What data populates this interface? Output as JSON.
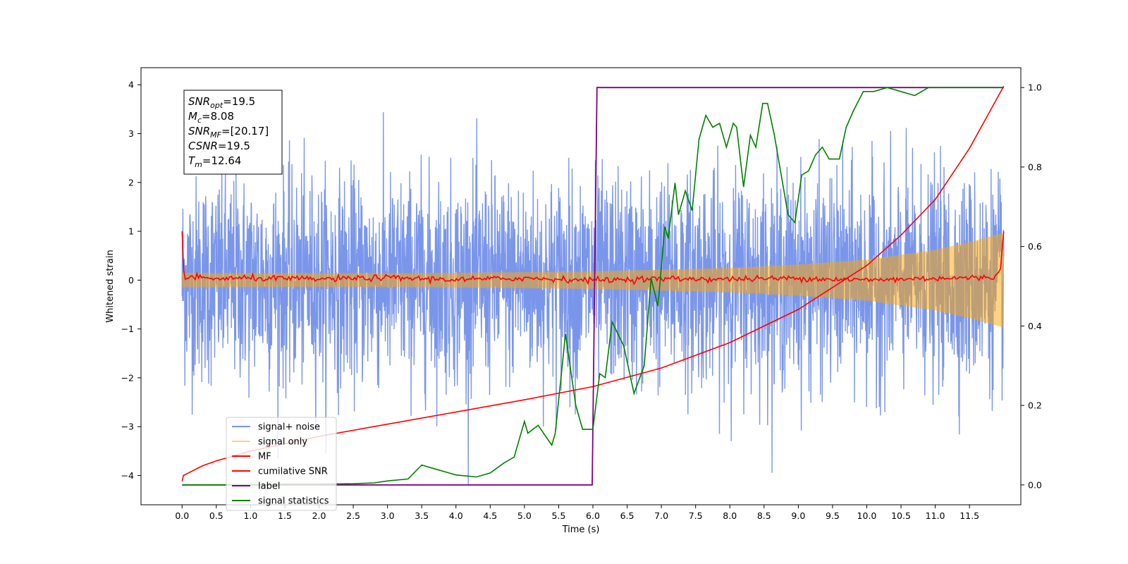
{
  "chart_data": {
    "type": "line",
    "title": "",
    "xlabel": "Time (s)",
    "ylabel": "Whitened strain",
    "xlim": [
      -0.6,
      12.25
    ],
    "ylim": [
      -4.6,
      4.35
    ],
    "ylim_right": [
      -0.05,
      1.05
    ],
    "x_ticks": [
      0.0,
      0.5,
      1.0,
      1.5,
      2.0,
      2.5,
      3.0,
      3.5,
      4.0,
      4.5,
      5.0,
      5.5,
      6.0,
      6.5,
      7.0,
      7.5,
      8.0,
      8.5,
      9.0,
      9.5,
      10.0,
      10.5,
      11.0,
      11.5
    ],
    "x_tick_labels": [
      "0.0",
      "0.5",
      "1.0",
      "1.5",
      "2.0",
      "2.5",
      "3.0",
      "3.5",
      "4.0",
      "4.5",
      "5.0",
      "5.5",
      "6.0",
      "6.5",
      "7.0",
      "7.5",
      "8.0",
      "8.5",
      "9.0",
      "9.5",
      "10.0",
      "10.5",
      "11.0",
      "11.5"
    ],
    "y_ticks": [
      -4,
      -3,
      -2,
      -1,
      0,
      1,
      2,
      3,
      4
    ],
    "y_tick_labels": [
      "−4",
      "−3",
      "−2",
      "−1",
      "0",
      "1",
      "2",
      "3",
      "4"
    ],
    "y2_ticks": [
      0.0,
      0.2,
      0.4,
      0.6,
      0.8,
      1.0
    ],
    "y2_tick_labels": [
      "0.0",
      "0.2",
      "0.4",
      "0.6",
      "0.8",
      "1.0"
    ],
    "grid": false,
    "legend_position": "lower-left",
    "series": [
      {
        "name": "signal+ noise",
        "color": "#4169e1",
        "axis": "left",
        "style": "dense noise band, approx. ±2.2 typical with spikes to ±4, x 0.0–12.0"
      },
      {
        "name": "signal only",
        "color": "#ffa500",
        "axis": "left",
        "style": "chirp oscillation, amplitude envelope",
        "envelope": [
          [
            0.0,
            0.15
          ],
          [
            2.0,
            0.14
          ],
          [
            4.0,
            0.15
          ],
          [
            6.0,
            0.18
          ],
          [
            8.0,
            0.25
          ],
          [
            9.0,
            0.32
          ],
          [
            10.0,
            0.42
          ],
          [
            11.0,
            0.62
          ],
          [
            11.5,
            0.78
          ],
          [
            12.0,
            0.97
          ]
        ]
      },
      {
        "name": "MF",
        "color": "#ff0000",
        "axis": "left",
        "points": [
          [
            0.0,
            1.0
          ],
          [
            0.03,
            0.0
          ],
          [
            0.1,
            0.06
          ],
          [
            0.5,
            0.03
          ],
          [
            1.0,
            0.04
          ],
          [
            2.0,
            0.02
          ],
          [
            3.0,
            0.05
          ],
          [
            4.0,
            0.01
          ],
          [
            5.0,
            0.04
          ],
          [
            6.0,
            0.0
          ],
          [
            7.0,
            0.03
          ],
          [
            8.0,
            0.02
          ],
          [
            9.0,
            0.04
          ],
          [
            10.0,
            0.0
          ],
          [
            11.0,
            0.04
          ],
          [
            11.85,
            0.05
          ],
          [
            11.95,
            0.2
          ],
          [
            12.0,
            1.0
          ]
        ]
      },
      {
        "name": "cumilative SNR",
        "color": "#ff0000",
        "axis": "left",
        "points": [
          [
            0.0,
            -4.12
          ],
          [
            0.02,
            -4.0
          ],
          [
            0.3,
            -3.8
          ],
          [
            0.5,
            -3.7
          ],
          [
            1.0,
            -3.5
          ],
          [
            1.5,
            -3.35
          ],
          [
            2.0,
            -3.2
          ],
          [
            3.0,
            -2.95
          ],
          [
            4.0,
            -2.7
          ],
          [
            5.0,
            -2.45
          ],
          [
            6.0,
            -2.18
          ],
          [
            7.0,
            -1.8
          ],
          [
            8.0,
            -1.28
          ],
          [
            9.0,
            -0.6
          ],
          [
            10.0,
            0.3
          ],
          [
            10.5,
            0.92
          ],
          [
            11.0,
            1.65
          ],
          [
            11.5,
            2.7
          ],
          [
            12.0,
            3.97
          ]
        ]
      },
      {
        "name": "label",
        "color": "#800080",
        "axis": "right",
        "points": [
          [
            0.0,
            0.0
          ],
          [
            5.99,
            0.0
          ],
          [
            6.06,
            1.0
          ],
          [
            12.0,
            1.0
          ]
        ]
      },
      {
        "name": "signal statistics",
        "color": "#008000",
        "axis": "right",
        "points": [
          [
            0.0,
            0.0
          ],
          [
            0.5,
            0.0
          ],
          [
            1.0,
            0.0
          ],
          [
            1.5,
            0.002
          ],
          [
            2.0,
            0.002
          ],
          [
            2.5,
            0.003
          ],
          [
            2.8,
            0.005
          ],
          [
            3.0,
            0.01
          ],
          [
            3.3,
            0.015
          ],
          [
            3.5,
            0.05
          ],
          [
            3.7,
            0.04
          ],
          [
            4.0,
            0.025
          ],
          [
            4.3,
            0.02
          ],
          [
            4.5,
            0.03
          ],
          [
            4.7,
            0.055
          ],
          [
            4.85,
            0.07
          ],
          [
            5.0,
            0.16
          ],
          [
            5.05,
            0.13
          ],
          [
            5.2,
            0.15
          ],
          [
            5.4,
            0.1
          ],
          [
            5.45,
            0.13
          ],
          [
            5.6,
            0.38
          ],
          [
            5.75,
            0.2
          ],
          [
            5.85,
            0.14
          ],
          [
            6.0,
            0.14
          ],
          [
            6.1,
            0.28
          ],
          [
            6.18,
            0.27
          ],
          [
            6.28,
            0.41
          ],
          [
            6.45,
            0.35
          ],
          [
            6.6,
            0.23
          ],
          [
            6.75,
            0.3
          ],
          [
            6.85,
            0.52
          ],
          [
            6.95,
            0.45
          ],
          [
            7.05,
            0.65
          ],
          [
            7.1,
            0.62
          ],
          [
            7.2,
            0.76
          ],
          [
            7.25,
            0.68
          ],
          [
            7.35,
            0.74
          ],
          [
            7.45,
            0.69
          ],
          [
            7.55,
            0.87
          ],
          [
            7.65,
            0.93
          ],
          [
            7.75,
            0.9
          ],
          [
            7.85,
            0.91
          ],
          [
            7.95,
            0.85
          ],
          [
            8.05,
            0.91
          ],
          [
            8.1,
            0.9
          ],
          [
            8.2,
            0.75
          ],
          [
            8.3,
            0.88
          ],
          [
            8.38,
            0.85
          ],
          [
            8.48,
            0.96
          ],
          [
            8.55,
            0.96
          ],
          [
            8.65,
            0.88
          ],
          [
            8.75,
            0.78
          ],
          [
            8.85,
            0.68
          ],
          [
            8.95,
            0.66
          ],
          [
            9.05,
            0.78
          ],
          [
            9.15,
            0.79
          ],
          [
            9.25,
            0.83
          ],
          [
            9.35,
            0.85
          ],
          [
            9.45,
            0.82
          ],
          [
            9.6,
            0.82
          ],
          [
            9.7,
            0.9
          ],
          [
            9.8,
            0.94
          ],
          [
            9.95,
            0.99
          ],
          [
            10.1,
            0.99
          ],
          [
            10.3,
            1.0
          ],
          [
            10.5,
            0.99
          ],
          [
            10.7,
            0.98
          ],
          [
            10.9,
            1.0
          ],
          [
            11.2,
            1.0
          ],
          [
            11.5,
            1.0
          ],
          [
            12.0,
            1.0
          ]
        ]
      }
    ],
    "annotations": [
      {
        "base": "SNR",
        "sub": "opt",
        "value": "=19.5"
      },
      {
        "base": "M",
        "sub": "c",
        "value": "=8.08"
      },
      {
        "base": "SNR",
        "sub": "MF",
        "value": "=[20.17]"
      },
      {
        "base": "CSNR",
        "sub": "",
        "value": "=19.5"
      },
      {
        "base": "T",
        "sub": "m",
        "value": "=12.64"
      }
    ]
  }
}
